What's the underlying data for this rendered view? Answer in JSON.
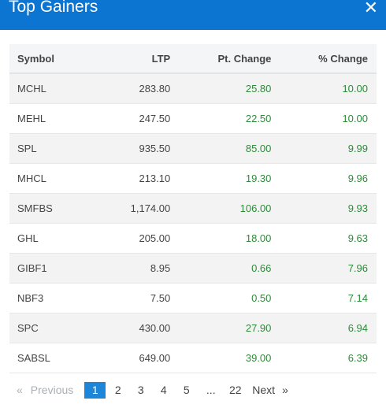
{
  "header": {
    "title": "Top Gainers",
    "close_symbol": "✕"
  },
  "table": {
    "columns": [
      "Symbol",
      "LTP",
      "Pt. Change",
      "% Change"
    ],
    "rows": [
      {
        "symbol": "MCHL",
        "ltp": "283.80",
        "pt_change": "25.80",
        "pct_change": "10.00"
      },
      {
        "symbol": "MEHL",
        "ltp": "247.50",
        "pt_change": "22.50",
        "pct_change": "10.00"
      },
      {
        "symbol": "SPL",
        "ltp": "935.50",
        "pt_change": "85.00",
        "pct_change": "9.99"
      },
      {
        "symbol": "MHCL",
        "ltp": "213.10",
        "pt_change": "19.30",
        "pct_change": "9.96"
      },
      {
        "symbol": "SMFBS",
        "ltp": "1,174.00",
        "pt_change": "106.00",
        "pct_change": "9.93"
      },
      {
        "symbol": "GHL",
        "ltp": "205.00",
        "pt_change": "18.00",
        "pct_change": "9.63"
      },
      {
        "symbol": "GIBF1",
        "ltp": "8.95",
        "pt_change": "0.66",
        "pct_change": "7.96"
      },
      {
        "symbol": "NBF3",
        "ltp": "7.50",
        "pt_change": "0.50",
        "pct_change": "7.14"
      },
      {
        "symbol": "SPC",
        "ltp": "430.00",
        "pt_change": "27.90",
        "pct_change": "6.94"
      },
      {
        "symbol": "SABSL",
        "ltp": "649.00",
        "pt_change": "39.00",
        "pct_change": "6.39"
      }
    ]
  },
  "pagination": {
    "prev_arrow": "«",
    "prev_label": "Previous",
    "pages": [
      "1",
      "2",
      "3",
      "4",
      "5"
    ],
    "active_page": "1",
    "ellipsis": "...",
    "last_page": "22",
    "next_label": "Next",
    "next_arrow": "»"
  },
  "colors": {
    "header_bg": "#0b75d1",
    "positive_green": "#2e8b3a",
    "active_page_bg": "#1e86d8"
  }
}
